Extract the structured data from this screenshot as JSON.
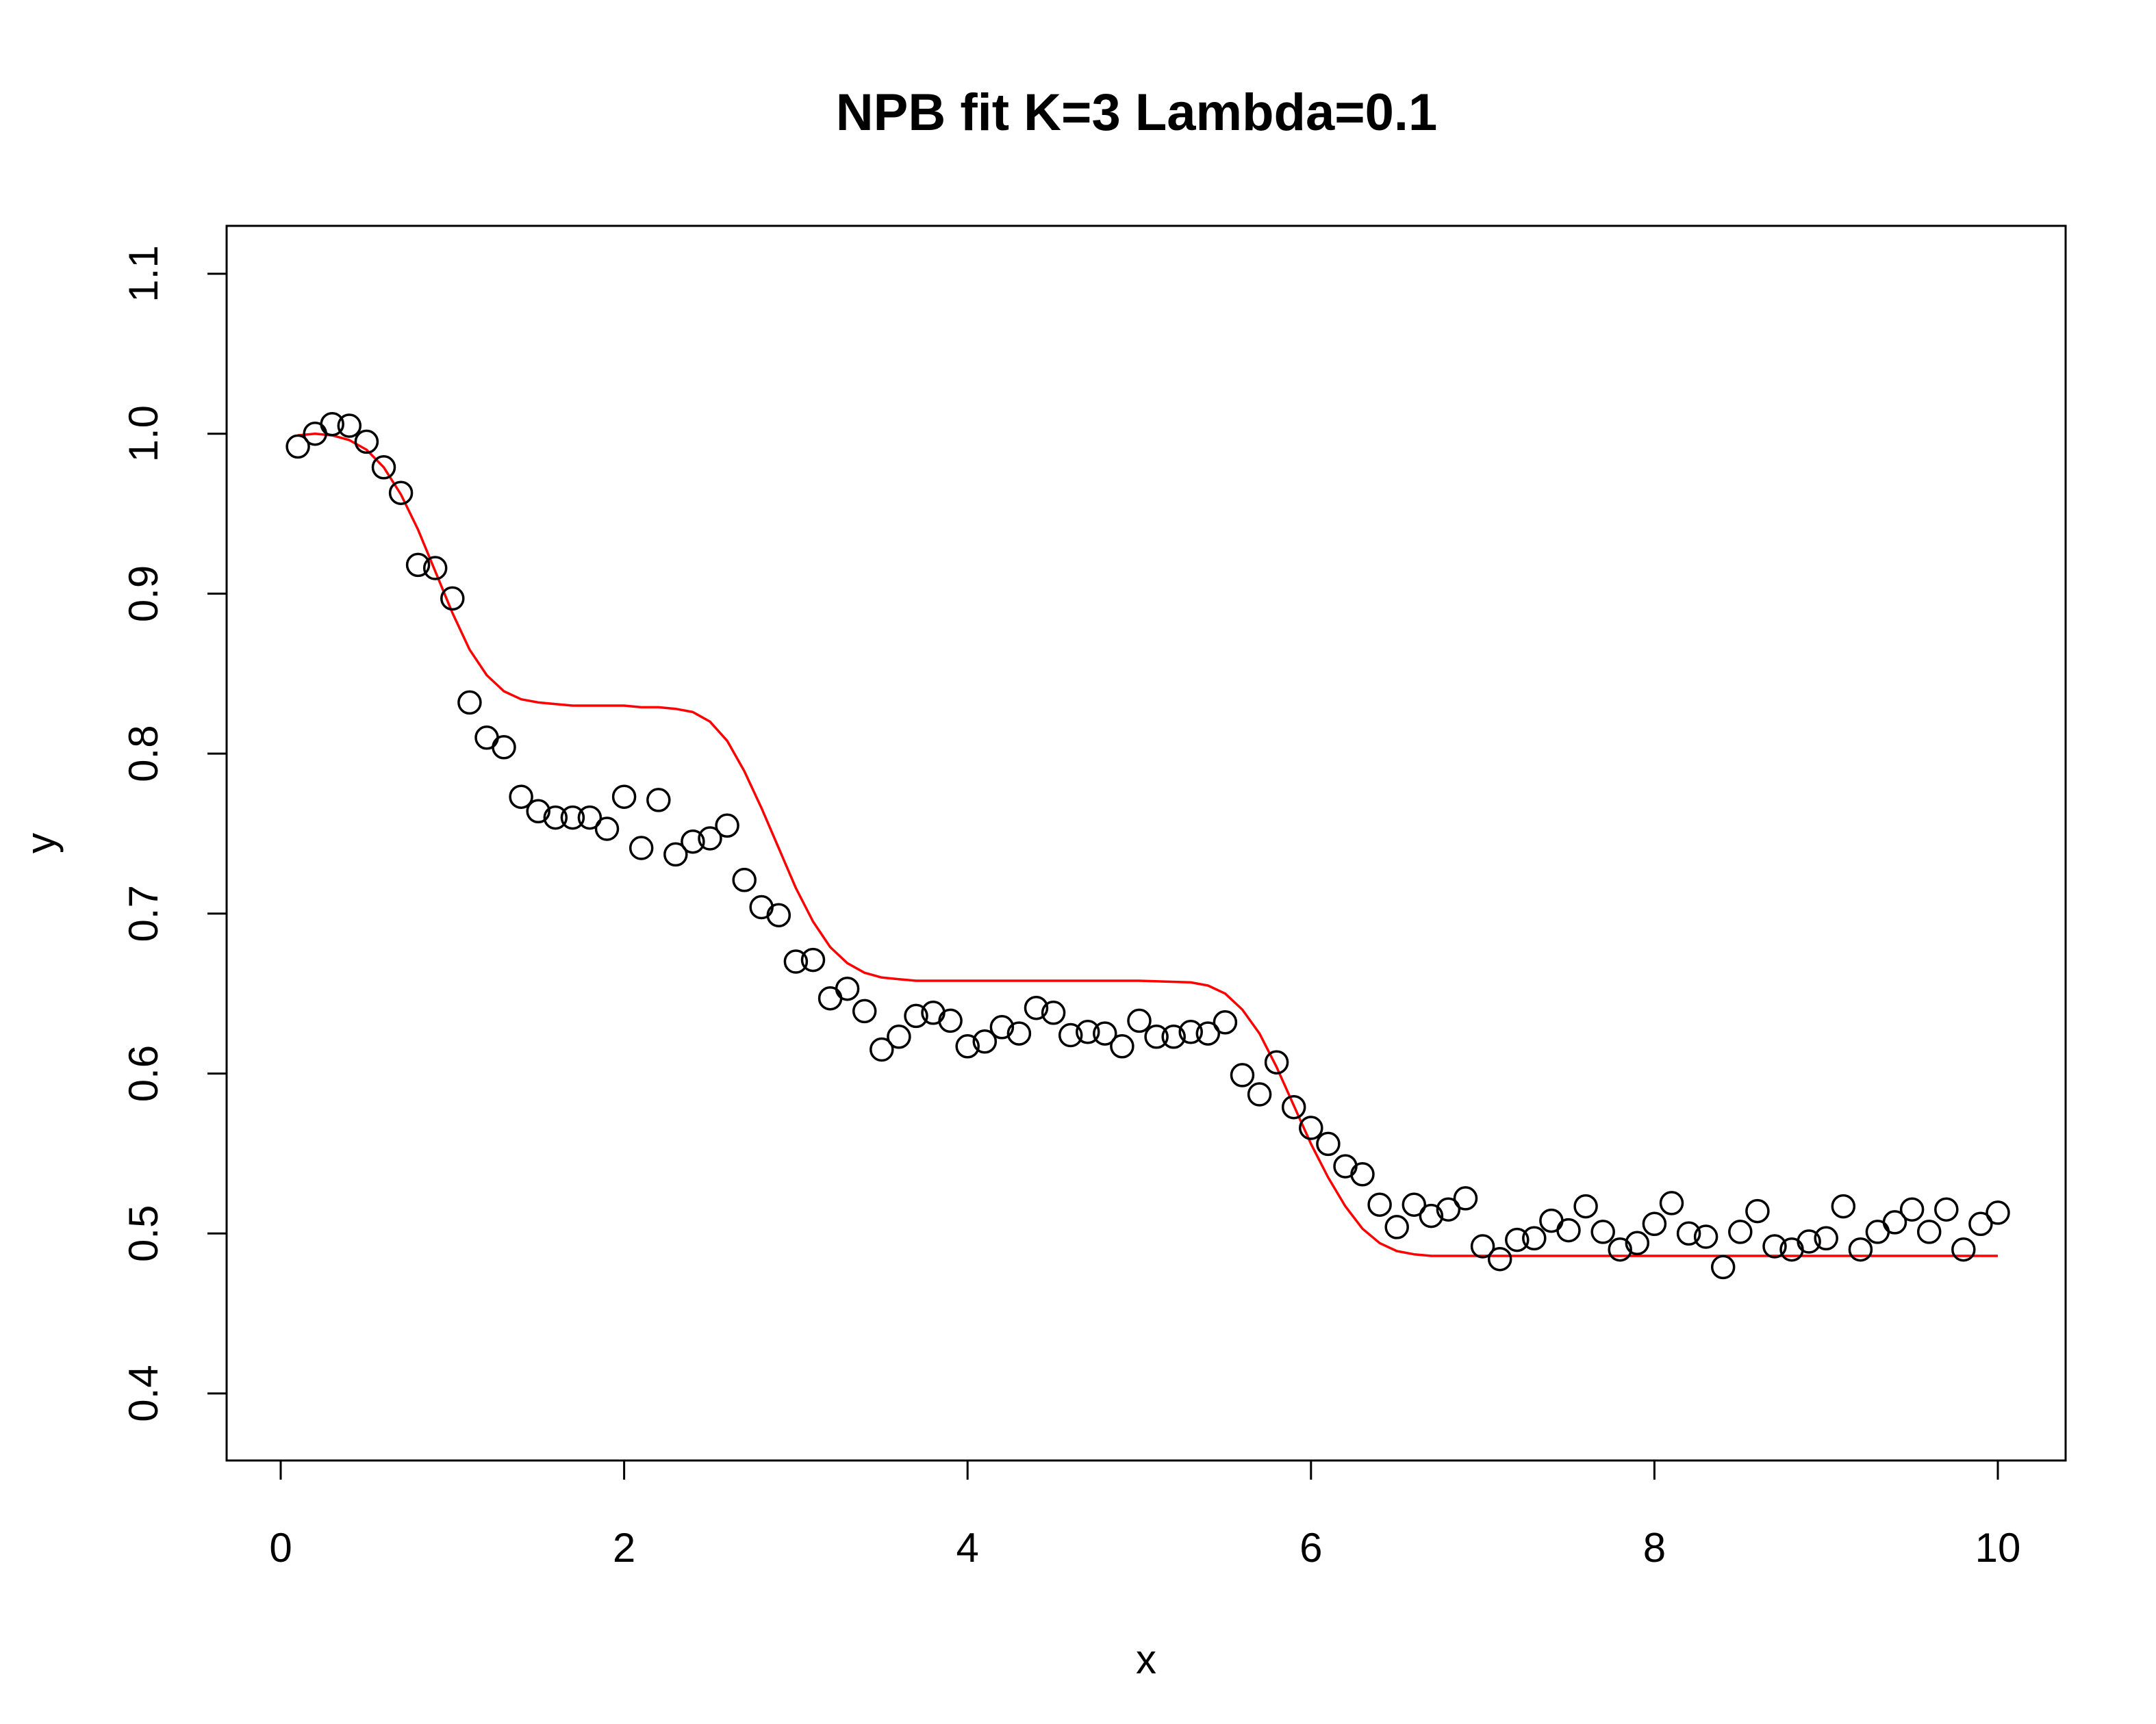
{
  "chart_data": {
    "type": "scatter",
    "title": "NPB fit K=3 Lambda=0.1",
    "xlabel": "x",
    "ylabel": "y",
    "xlim": [
      0,
      10
    ],
    "ylim": [
      0.4,
      1.1
    ],
    "grid": false,
    "legend": null,
    "x_ticks": [
      0,
      2,
      4,
      6,
      8,
      10
    ],
    "x_tick_labels": [
      "0",
      "2",
      "4",
      "6",
      "8",
      "10"
    ],
    "y_ticks": [
      0.4,
      0.5,
      0.6,
      0.7,
      0.8,
      0.9,
      1.0,
      1.1
    ],
    "y_tick_labels": [
      "0.4",
      "0.5",
      "0.6",
      "0.7",
      "0.8",
      "0.9",
      "1.0",
      "1.1"
    ],
    "series": [
      {
        "kind": "points",
        "color": "#000000",
        "marker": "open-circle",
        "x": [
          0.1,
          0.2,
          0.3,
          0.4,
          0.5,
          0.6,
          0.7,
          0.8,
          0.9,
          1.0,
          1.1,
          1.2,
          1.3,
          1.4,
          1.5,
          1.6,
          1.7,
          1.8,
          1.9,
          2.0,
          2.1,
          2.2,
          2.3,
          2.4,
          2.5,
          2.6,
          2.7,
          2.8,
          2.9,
          3.0,
          3.1,
          3.2,
          3.3,
          3.4,
          3.5,
          3.6,
          3.7,
          3.8,
          3.9,
          4.0,
          4.1,
          4.2,
          4.3,
          4.4,
          4.5,
          4.6,
          4.7,
          4.8,
          4.9,
          5.0,
          5.1,
          5.2,
          5.3,
          5.4,
          5.5,
          5.6,
          5.7,
          5.8,
          5.9,
          6.0,
          6.1,
          6.2,
          6.3,
          6.4,
          6.5,
          6.6,
          6.7,
          6.8,
          6.9,
          7.0,
          7.1,
          7.2,
          7.3,
          7.4,
          7.5,
          7.6,
          7.7,
          7.8,
          7.9,
          8.0,
          8.1,
          8.2,
          8.3,
          8.4,
          8.5,
          8.6,
          8.7,
          8.8,
          8.9,
          9.0,
          9.1,
          9.2,
          9.3,
          9.4,
          9.5,
          9.6,
          9.7,
          9.8,
          9.9,
          10.0
        ],
        "y": [
          0.992,
          1.0,
          1.006,
          1.005,
          0.995,
          0.979,
          0.963,
          0.918,
          0.916,
          0.897,
          0.832,
          0.81,
          0.804,
          0.773,
          0.764,
          0.76,
          0.76,
          0.76,
          0.753,
          0.773,
          0.741,
          0.771,
          0.737,
          0.745,
          0.747,
          0.755,
          0.721,
          0.704,
          0.699,
          0.67,
          0.671,
          0.647,
          0.653,
          0.639,
          0.615,
          0.623,
          0.636,
          0.638,
          0.633,
          0.617,
          0.62,
          0.629,
          0.625,
          0.641,
          0.638,
          0.624,
          0.626,
          0.625,
          0.617,
          0.633,
          0.623,
          0.623,
          0.626,
          0.625,
          0.632,
          0.599,
          0.587,
          0.607,
          0.579,
          0.566,
          0.556,
          0.542,
          0.537,
          0.518,
          0.504,
          0.518,
          0.511,
          0.515,
          0.522,
          0.492,
          0.484,
          0.496,
          0.497,
          0.508,
          0.502,
          0.517,
          0.501,
          0.49,
          0.494,
          0.506,
          0.519,
          0.5,
          0.498,
          0.479,
          0.501,
          0.514,
          0.492,
          0.49,
          0.495,
          0.497,
          0.517,
          0.49,
          0.501,
          0.507,
          0.515,
          0.501,
          0.515,
          0.49,
          0.506,
          0.513
        ]
      },
      {
        "kind": "line",
        "color": "#ff0000",
        "x": [
          0.1,
          0.2,
          0.3,
          0.4,
          0.5,
          0.6,
          0.7,
          0.8,
          0.9,
          1.0,
          1.1,
          1.2,
          1.3,
          1.4,
          1.5,
          1.6,
          1.7,
          1.8,
          1.9,
          2.0,
          2.1,
          2.2,
          2.3,
          2.4,
          2.5,
          2.6,
          2.7,
          2.8,
          2.9,
          3.0,
          3.1,
          3.2,
          3.3,
          3.4,
          3.5,
          3.6,
          3.7,
          3.8,
          3.9,
          4.0,
          4.5,
          5.0,
          5.3,
          5.4,
          5.5,
          5.6,
          5.7,
          5.8,
          5.9,
          6.0,
          6.1,
          6.2,
          6.3,
          6.4,
          6.5,
          6.6,
          6.7,
          6.8,
          6.9,
          7.0,
          7.5,
          8.0,
          9.0,
          10.0
        ],
        "y": [
          0.999,
          1.0,
          0.999,
          0.996,
          0.99,
          0.979,
          0.962,
          0.94,
          0.914,
          0.888,
          0.865,
          0.849,
          0.839,
          0.834,
          0.832,
          0.831,
          0.83,
          0.83,
          0.83,
          0.83,
          0.829,
          0.829,
          0.828,
          0.826,
          0.82,
          0.808,
          0.789,
          0.766,
          0.741,
          0.716,
          0.695,
          0.679,
          0.669,
          0.663,
          0.66,
          0.659,
          0.658,
          0.658,
          0.658,
          0.658,
          0.658,
          0.658,
          0.657,
          0.655,
          0.65,
          0.64,
          0.625,
          0.604,
          0.58,
          0.556,
          0.535,
          0.517,
          0.503,
          0.494,
          0.489,
          0.487,
          0.486,
          0.486,
          0.486,
          0.486,
          0.486,
          0.486,
          0.486,
          0.486
        ]
      }
    ]
  }
}
